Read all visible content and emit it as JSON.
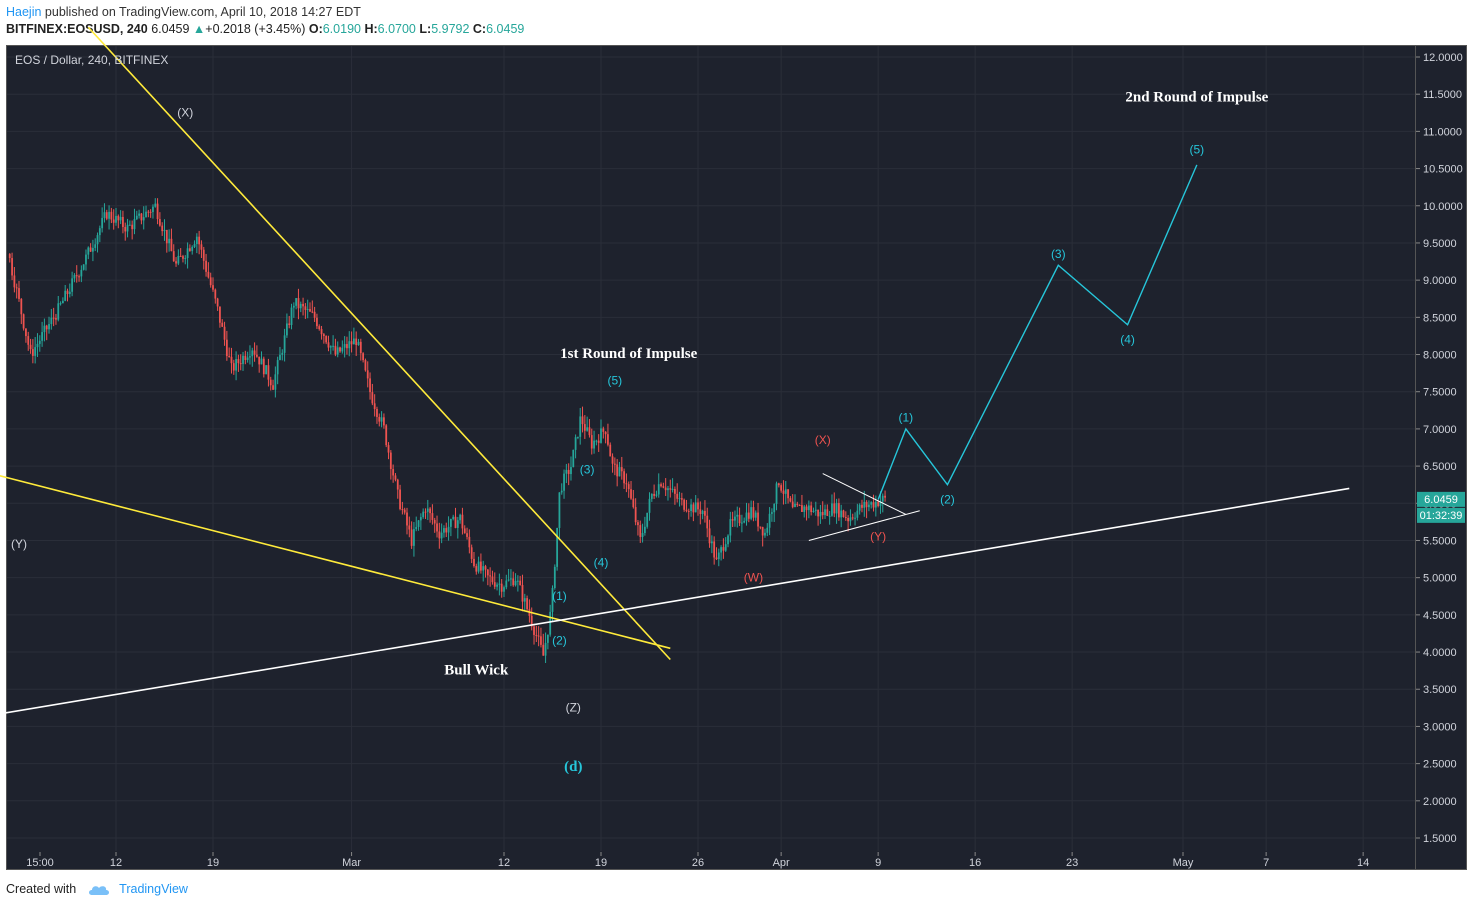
{
  "header": {
    "author": "Haejin",
    "published": "published on TradingView.com, April 10, 2018 14:27 EDT",
    "symbol": "BITFINEX:EOSUSD, 240",
    "last": "6.0459",
    "change": "+0.2018 (+3.45%)",
    "o_label": "O:",
    "o": "6.0190",
    "h_label": "H:",
    "h": "6.0700",
    "l_label": "L:",
    "l": "5.9792",
    "c_label": "C:",
    "c": "6.0459"
  },
  "chart_title": "EOS / Dollar, 240, BITFINEX",
  "price_badge": "6.0459",
  "timer_badge": "01:32:39",
  "footer": {
    "created": "Created with",
    "brand": "TradingView"
  },
  "colors": {
    "bg": "#1e222d",
    "up": "#26a69a",
    "down": "#ef5350",
    "trend": "#ffeb3b",
    "wave": "#26c6da"
  },
  "chart_data": {
    "type": "candlestick",
    "yticks": [
      "12.0000",
      "11.5000",
      "11.0000",
      "10.5000",
      "10.0000",
      "9.5000",
      "9.0000",
      "8.5000",
      "8.0000",
      "7.5000",
      "7.0000",
      "6.5000",
      "6.0000",
      "5.5000",
      "5.0000",
      "4.5000",
      "4.0000",
      "3.5000",
      "3.0000",
      "2.5000",
      "2.0000",
      "1.5000"
    ],
    "xticks": [
      "15:00",
      "12",
      "19",
      "Mar",
      "12",
      "19",
      "26",
      "Apr",
      "9",
      "16",
      "23",
      "May",
      "7",
      "14"
    ],
    "ylim": [
      1.2,
      12.2
    ],
    "annotations": [
      {
        "text": "(X)",
        "x": "Feb 17",
        "y": 11.2,
        "color": "#d1d4dc"
      },
      {
        "text": "(Y)",
        "x": "Feb 5",
        "y": 5.4,
        "color": "#d1d4dc"
      },
      {
        "text": "Bull Wick",
        "x": "Mar 12",
        "y": 3.7,
        "color": "#ffffff",
        "bold": true
      },
      {
        "text": "(Z)",
        "x": "Mar 19",
        "y": 3.2,
        "color": "#d1d4dc"
      },
      {
        "text": "(d)",
        "x": "Mar 19",
        "y": 2.4,
        "color": "#26c6da",
        "bold": true
      },
      {
        "text": "1st Round of Impulse",
        "x": "Mar 23",
        "y": 7.95,
        "color": "#ffffff",
        "bold": true
      },
      {
        "text": "2nd Round of Impulse",
        "x": "May 3",
        "y": 11.4,
        "color": "#ffffff",
        "bold": true
      },
      {
        "text": "(1)",
        "x": "Mar 18",
        "y": 4.7,
        "color": "#26c6da"
      },
      {
        "text": "(2)",
        "x": "Mar 18",
        "y": 4.1,
        "color": "#26c6da"
      },
      {
        "text": "(3)",
        "x": "Mar 20",
        "y": 6.4,
        "color": "#26c6da"
      },
      {
        "text": "(4)",
        "x": "Mar 21",
        "y": 5.15,
        "color": "#26c6da"
      },
      {
        "text": "(5)",
        "x": "Mar 22",
        "y": 7.6,
        "color": "#26c6da"
      },
      {
        "text": "(W)",
        "x": "Apr 1",
        "y": 4.95,
        "color": "#ef5350"
      },
      {
        "text": "(X)",
        "x": "Apr 6",
        "y": 6.8,
        "color": "#ef5350"
      },
      {
        "text": "(Y)",
        "x": "Apr 10",
        "y": 5.5,
        "color": "#ef5350"
      },
      {
        "text": "(1)",
        "x": "Apr 12",
        "y": 7.1,
        "color": "#26c6da"
      },
      {
        "text": "(2)",
        "x": "Apr 15",
        "y": 6.0,
        "color": "#26c6da"
      },
      {
        "text": "(3)",
        "x": "Apr 23",
        "y": 9.3,
        "color": "#26c6da"
      },
      {
        "text": "(4)",
        "x": "Apr 28",
        "y": 8.15,
        "color": "#26c6da"
      },
      {
        "text": "(5)",
        "x": "May 3",
        "y": 10.7,
        "color": "#26c6da"
      }
    ],
    "projection": {
      "x": [
        "Apr 10",
        "Apr 12",
        "Apr 15",
        "Apr 23",
        "Apr 28",
        "May 3"
      ],
      "y": [
        6.05,
        7.0,
        6.25,
        9.2,
        8.4,
        10.55
      ]
    },
    "trendlines": [
      {
        "name": "upper",
        "from": [
          "Feb 10",
          12.4
        ],
        "to": [
          "Mar 26",
          3.9
        ],
        "color": "#ffeb3b"
      },
      {
        "name": "lower",
        "from": [
          "Feb 3",
          6.4
        ],
        "to": [
          "Mar 26",
          4.05
        ],
        "color": "#ffeb3b"
      },
      {
        "name": "support",
        "from": [
          "Feb 3",
          3.15
        ],
        "to": [
          "May 14",
          6.2
        ],
        "color": "#ffffff"
      }
    ]
  }
}
